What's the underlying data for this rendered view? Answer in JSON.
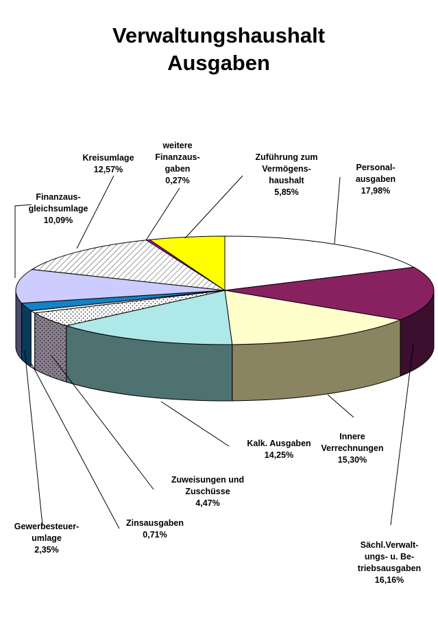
{
  "chart_data": {
    "type": "pie",
    "title": [
      "Verwaltungshaushalt",
      "Ausgaben"
    ],
    "slices": [
      {
        "label": [
          "Personal-",
          "ausgaben"
        ],
        "value": 17.98,
        "value_label": "17,98%",
        "color": "#ffffff"
      },
      {
        "label": [
          "Sächl.Verwalt-",
          "ungs- u. Be-",
          "triebsausgaben"
        ],
        "value": 16.16,
        "value_label": "16,16%",
        "color": "#882160"
      },
      {
        "label": [
          "Innere",
          "Verrechnungen"
        ],
        "value": 15.3,
        "value_label": "15,30%",
        "color": "#ffffcc"
      },
      {
        "label": [
          "Kalk. Ausgaben"
        ],
        "value": 14.25,
        "value_label": "14,25%",
        "color": "#aee8e8"
      },
      {
        "label": [
          "Zuweisungen und",
          "Zuschüsse"
        ],
        "value": 4.47,
        "value_label": "4,47%",
        "color": "#ffffff",
        "pattern": "dots"
      },
      {
        "label": [
          "Zinsausgaben"
        ],
        "value": 0.71,
        "value_label": "0,71%",
        "color": "#ffffff"
      },
      {
        "label": [
          "Gewerbesteuer-",
          "umlage"
        ],
        "value": 2.35,
        "value_label": "2,35%",
        "color": "#1581c6"
      },
      {
        "label": [
          "Finanzaus-",
          "gleichsumlage"
        ],
        "value": 10.09,
        "value_label": "10,09%",
        "color": "#ccccff"
      },
      {
        "label": [
          "Kreisumlage"
        ],
        "value": 12.57,
        "value_label": "12,57%",
        "color": "#ffffff",
        "pattern": "hatch"
      },
      {
        "label": [
          "weitere",
          "Finanzaus-",
          "gaben"
        ],
        "value": 0.27,
        "value_label": "0,27%",
        "color": "#cc00cc"
      },
      {
        "label": [
          "Zuführung zum",
          "Vermögens-",
          "haushalt"
        ],
        "value": 5.85,
        "value_label": "5,85%",
        "color": "#ffff00"
      }
    ]
  }
}
